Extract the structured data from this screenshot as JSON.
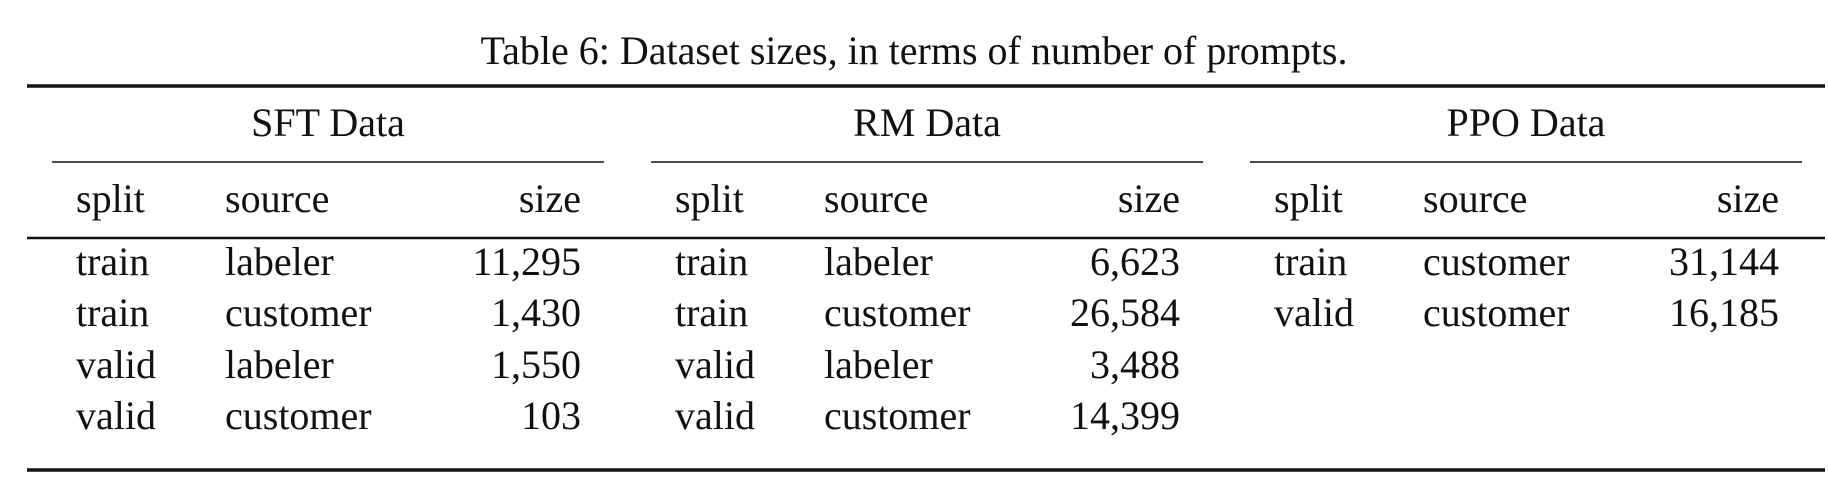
{
  "caption": "Table 6: Dataset sizes, in terms of number of prompts.",
  "groups": [
    {
      "title": "SFT Data",
      "header": [
        "split",
        "source",
        "size"
      ],
      "rows": [
        [
          "train",
          "labeler",
          "11,295"
        ],
        [
          "train",
          "customer",
          "1,430"
        ],
        [
          "valid",
          "labeler",
          "1,550"
        ],
        [
          "valid",
          "customer",
          "103"
        ]
      ]
    },
    {
      "title": "RM Data",
      "header": [
        "split",
        "source",
        "size"
      ],
      "rows": [
        [
          "train",
          "labeler",
          "6,623"
        ],
        [
          "train",
          "customer",
          "26,584"
        ],
        [
          "valid",
          "labeler",
          "3,488"
        ],
        [
          "valid",
          "customer",
          "14,399"
        ]
      ]
    },
    {
      "title": "PPO Data",
      "header": [
        "split",
        "source",
        "size"
      ],
      "rows": [
        [
          "train",
          "customer",
          "31,144"
        ],
        [
          "valid",
          "customer",
          "16,185"
        ]
      ]
    }
  ]
}
